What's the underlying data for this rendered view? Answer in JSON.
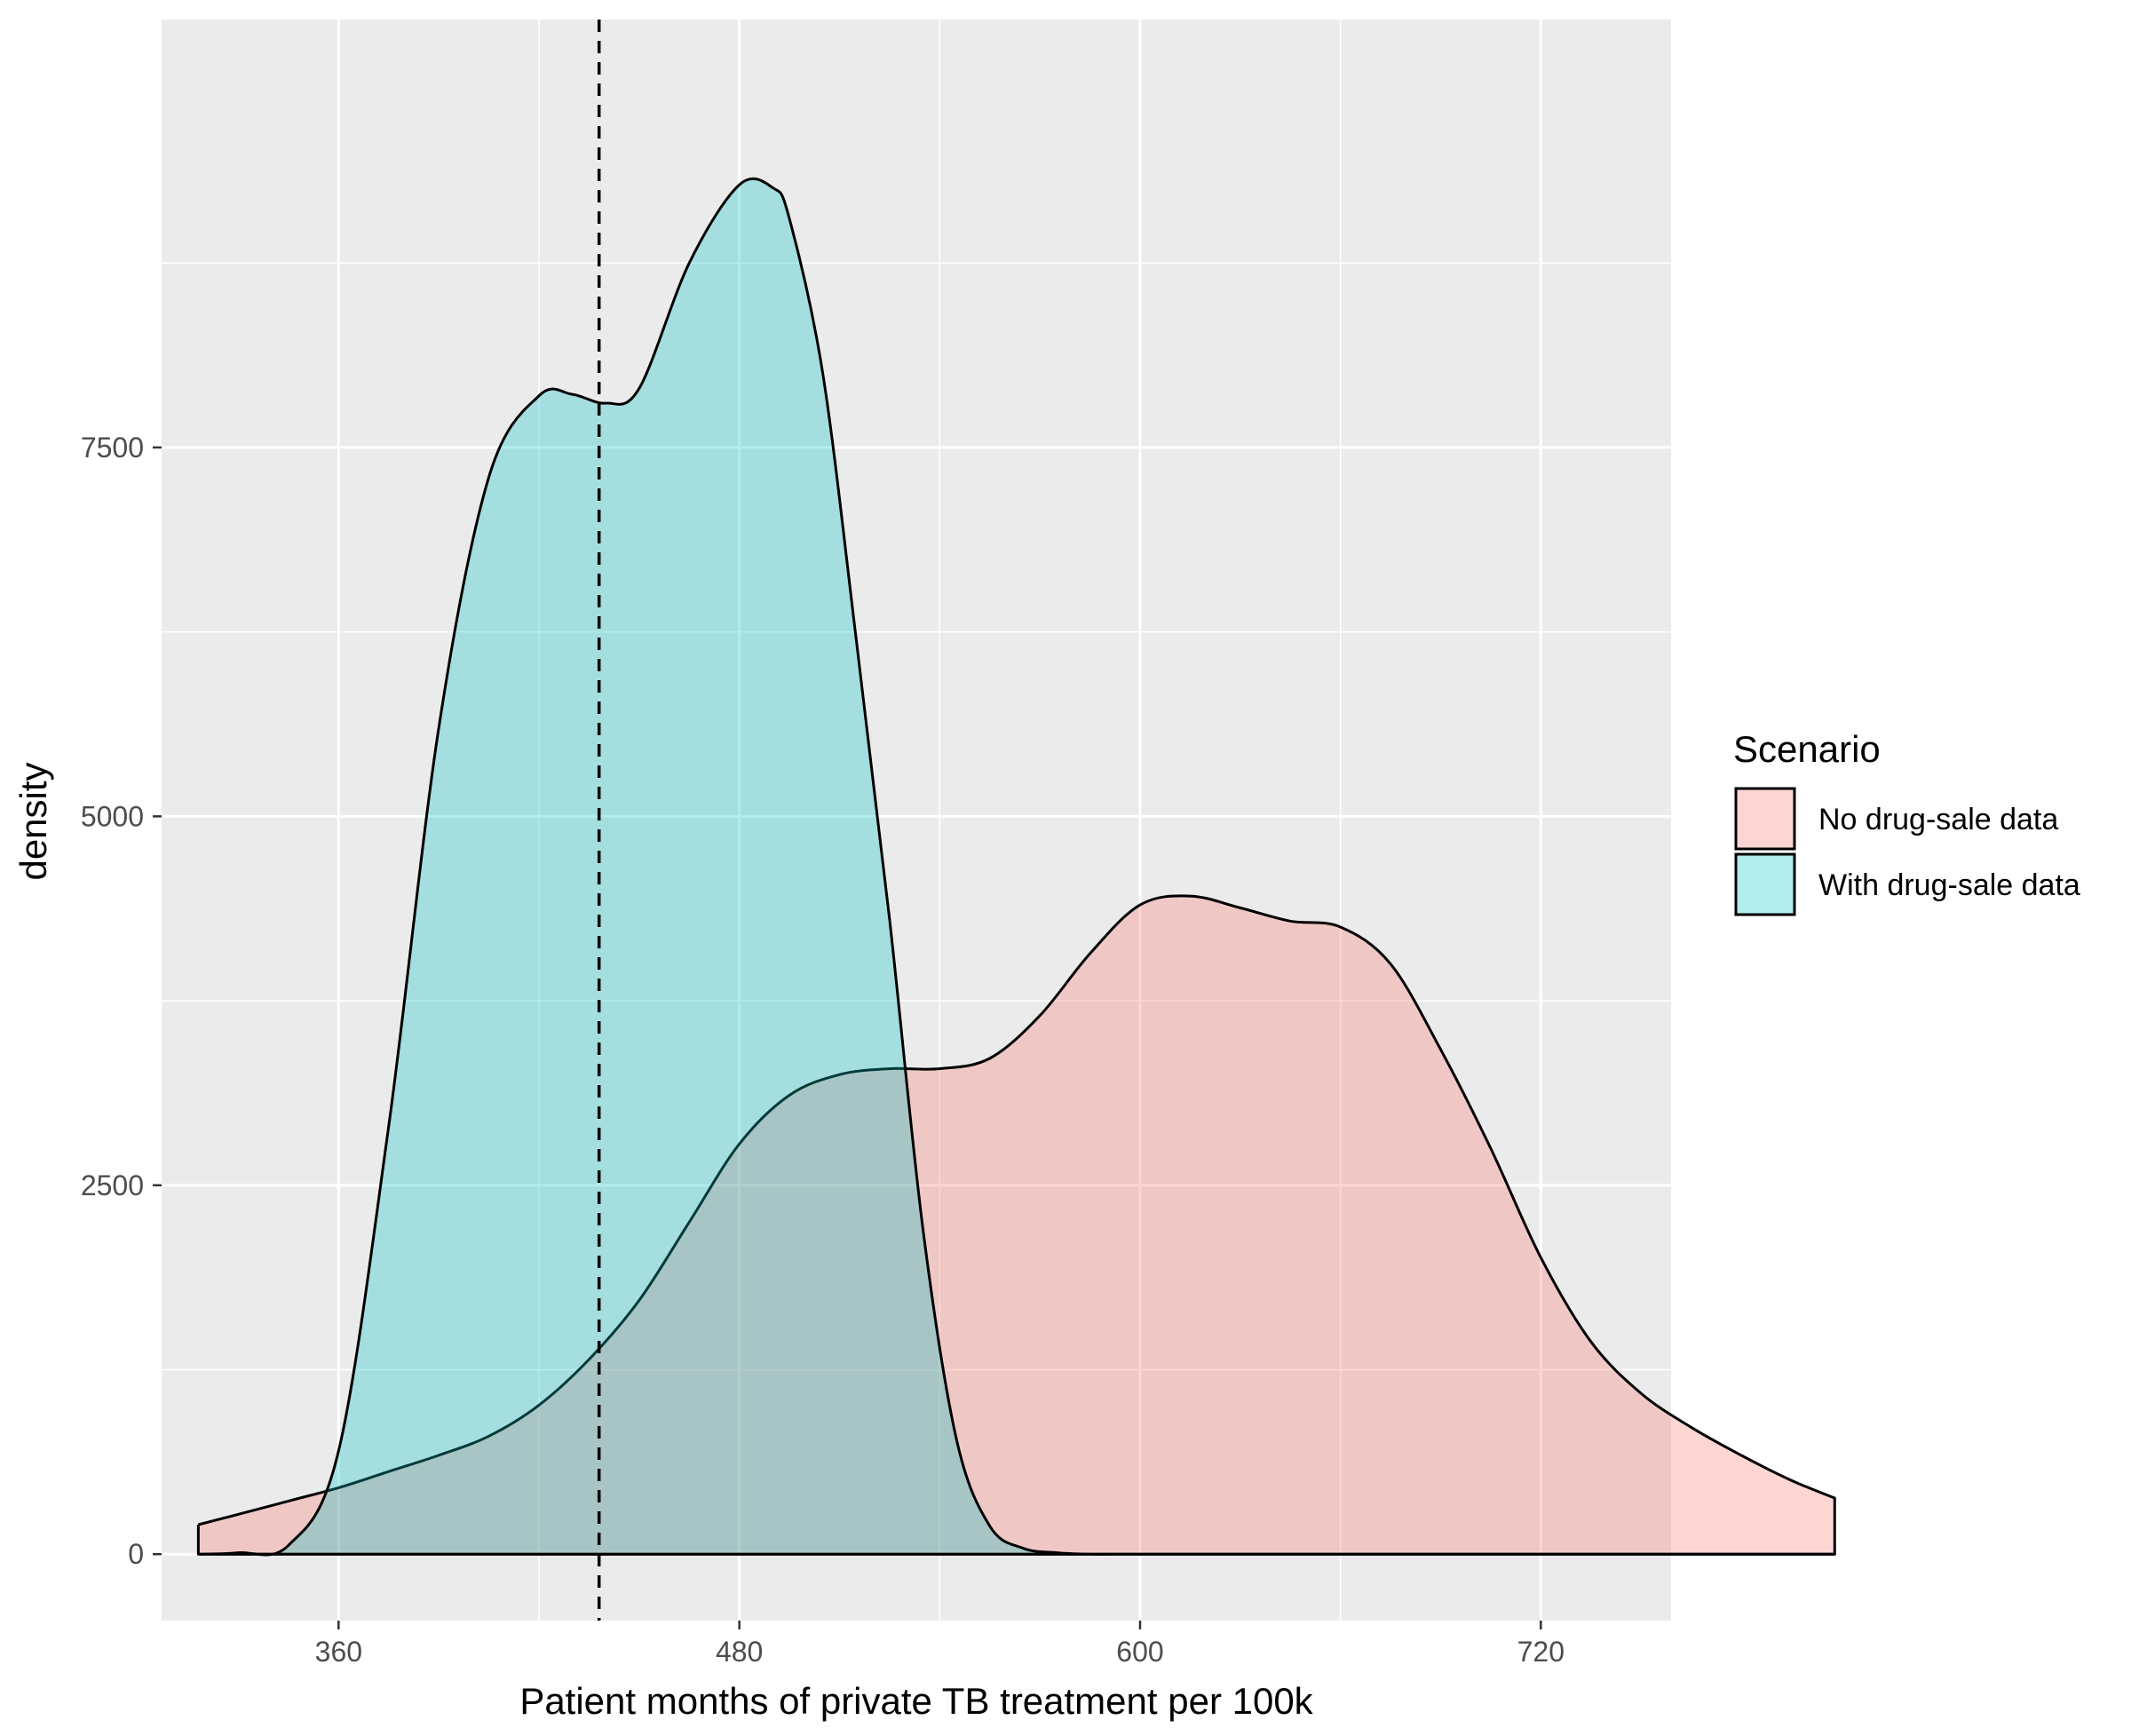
{
  "chart_data": {
    "type": "area",
    "subtype": "density",
    "title": "",
    "xlabel": "Patient months of private TB treatment per 100k",
    "ylabel": "density",
    "xlim": [
      307,
      759
    ],
    "ylim": [
      -450,
      10400
    ],
    "x_ticks": [
      360,
      480,
      600,
      720
    ],
    "x_tick_labels": [
      "360",
      "480",
      "600",
      "720"
    ],
    "y_ticks": [
      0,
      2500,
      5000,
      7500
    ],
    "y_tick_labels": [
      "0",
      "2500",
      "5000",
      "7500"
    ],
    "grid": true,
    "legend": {
      "title": "Scenario",
      "position": "right"
    },
    "reference_line": {
      "x": 438,
      "style": "dashed",
      "color": "#000000"
    },
    "series": [
      {
        "name": "No drug-sale data",
        "fill": "#F8766D",
        "fill_opacity": 0.3,
        "x": [
          318,
          330,
          345,
          360,
          375,
          390,
          405,
          420,
          435,
          450,
          465,
          480,
          495,
          510,
          525,
          540,
          555,
          570,
          585,
          600,
          615,
          630,
          645,
          660,
          675,
          690,
          705,
          720,
          735,
          750,
          765,
          780,
          795,
          808
        ],
        "values": [
          200,
          270,
          360,
          450,
          560,
          670,
          800,
          1010,
          1320,
          1720,
          2250,
          2780,
          3110,
          3250,
          3290,
          3290,
          3360,
          3650,
          4070,
          4400,
          4460,
          4380,
          4290,
          4250,
          4000,
          3420,
          2750,
          2010,
          1440,
          1090,
          860,
          670,
          500,
          380
        ]
      },
      {
        "name": "With drug-sale data",
        "fill": "#00BFC4",
        "fill_opacity": 0.3,
        "x": [
          318,
          330,
          345,
          360,
          375,
          390,
          405,
          420,
          430,
          440,
          450,
          465,
          480,
          490,
          495,
          505,
          515,
          525,
          535,
          545,
          555,
          565,
          575,
          585,
          600,
          630,
          700,
          808
        ],
        "values": [
          0,
          10,
          60,
          700,
          2900,
          5600,
          7300,
          7850,
          7860,
          7800,
          7900,
          8750,
          9280,
          9260,
          9050,
          8000,
          6200,
          4300,
          2200,
          780,
          190,
          40,
          10,
          0,
          0,
          0,
          0,
          0
        ]
      }
    ]
  }
}
